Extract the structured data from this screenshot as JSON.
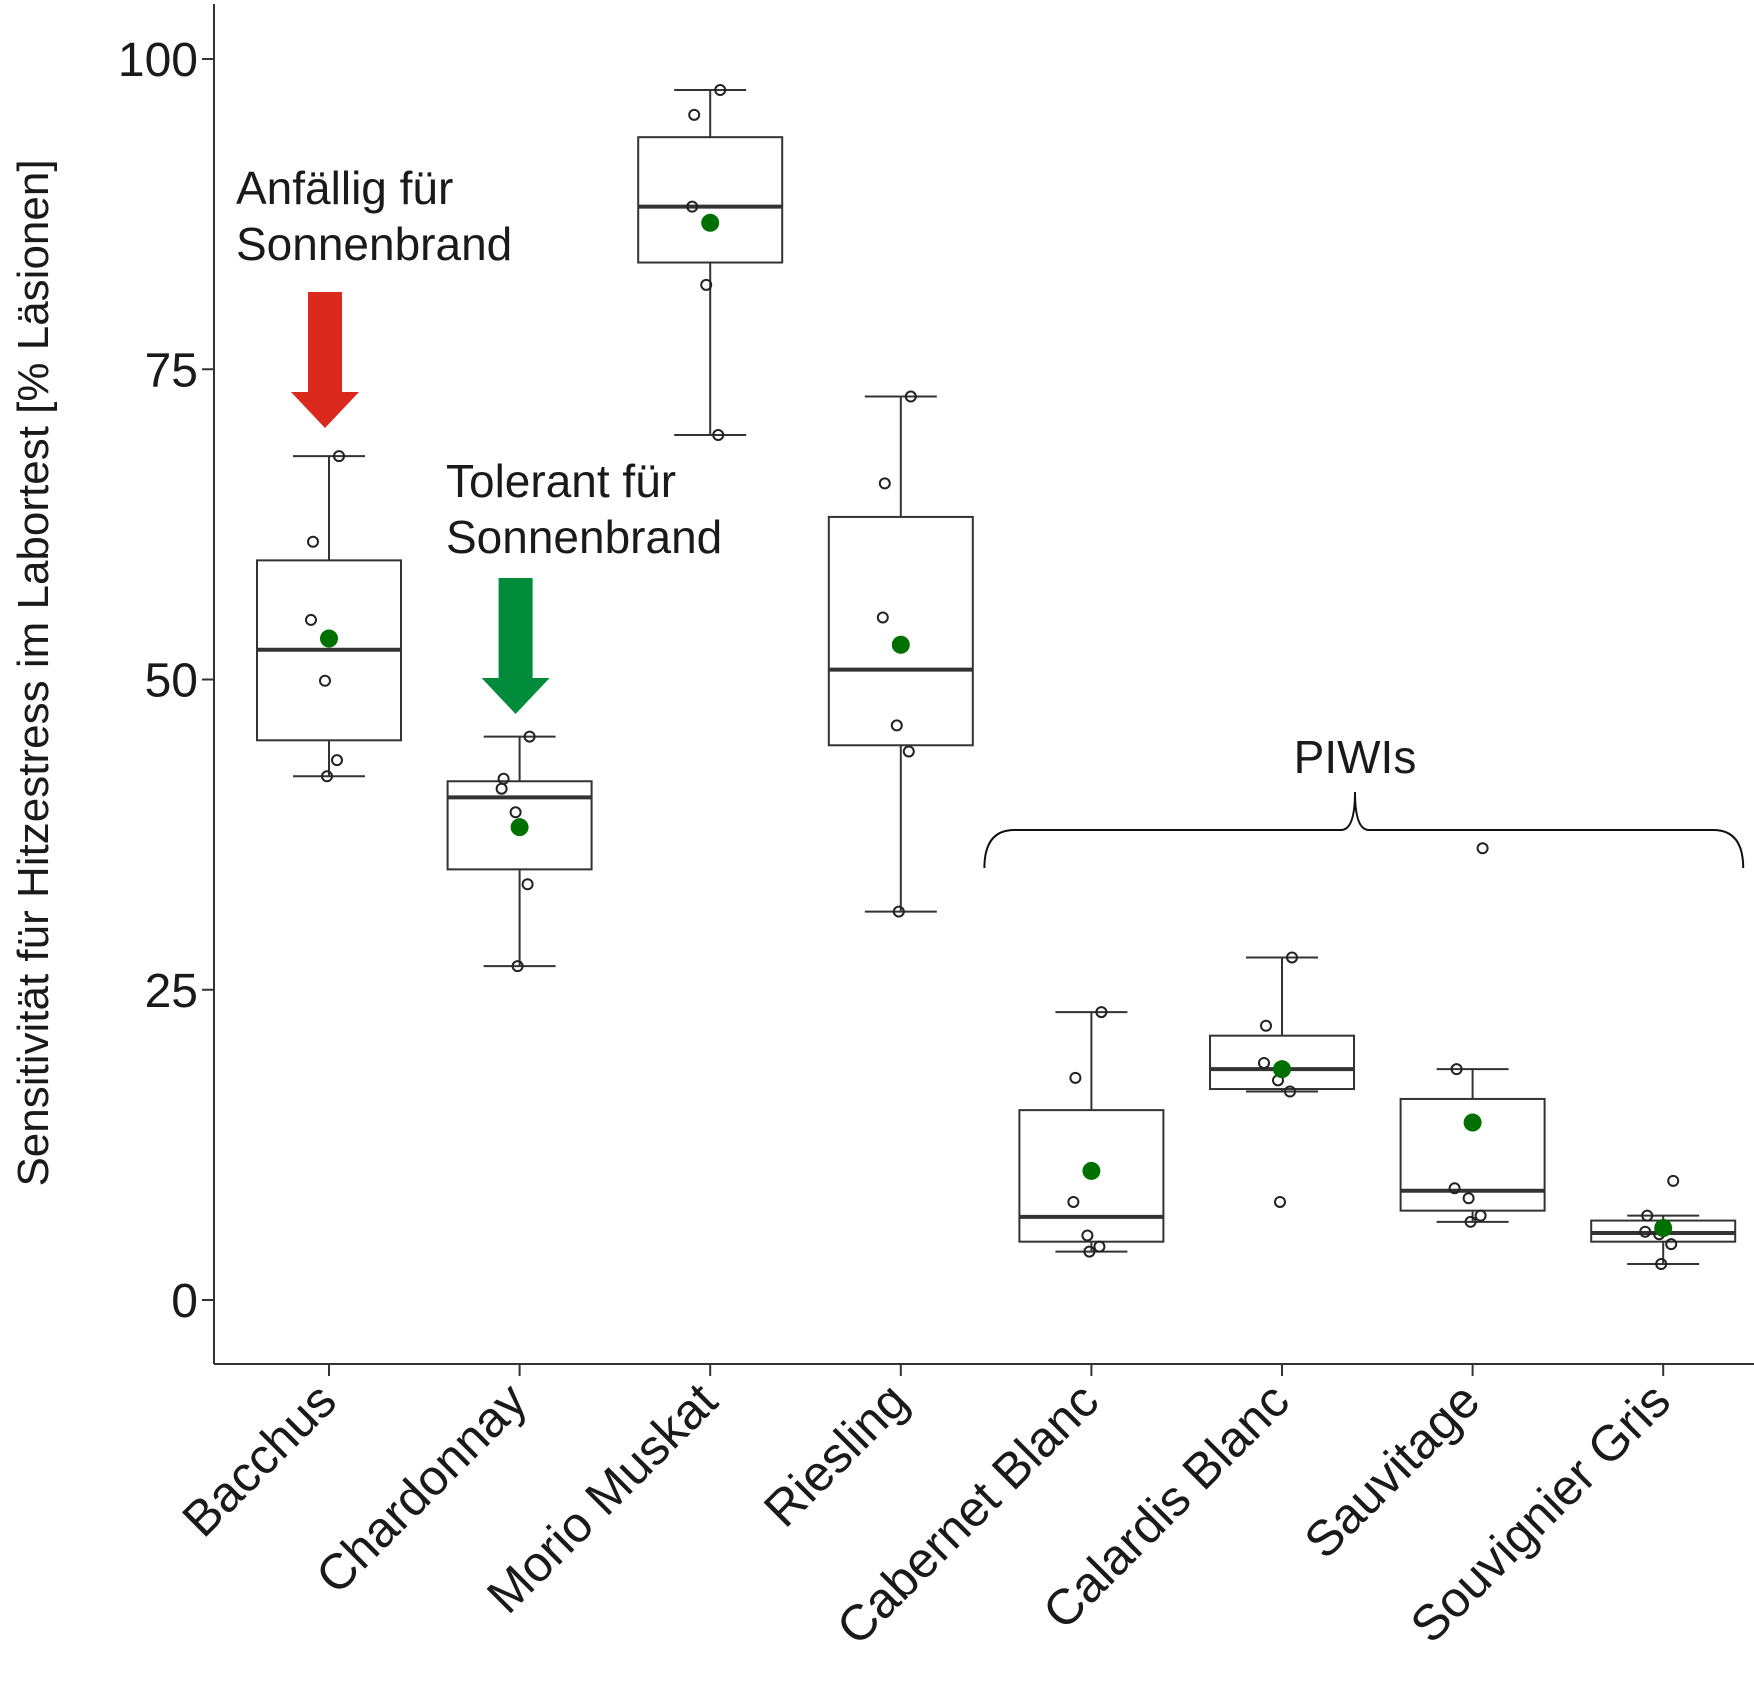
{
  "chart_data": {
    "type": "boxplot",
    "title": "",
    "xlabel": "",
    "ylabel": "Sensitivität für Hitzestress im Labortest [% Läsionen]",
    "ylim": [
      -5,
      105
    ],
    "yticks": [
      0,
      25,
      50,
      75,
      100
    ],
    "grid": false,
    "categories": [
      "Bacchus",
      "Chardonnay",
      "Morio Muskat",
      "Riesling",
      "Cabernet Blanc",
      "Calardis Blanc",
      "Sauvitage",
      "Souvignier Gris"
    ],
    "boxes": [
      {
        "whisker_low": 42.2,
        "q1": 45.1,
        "median": 52.4,
        "q3": 59.6,
        "whisker_high": 68.0,
        "mean": 53.3,
        "points": [
          68.0,
          61.1,
          54.8,
          49.9,
          43.5,
          42.2
        ]
      },
      {
        "whisker_low": 26.9,
        "q1": 34.7,
        "median": 40.5,
        "q3": 41.8,
        "whisker_high": 45.4,
        "mean": 38.1,
        "points": [
          45.4,
          42.0,
          41.2,
          39.3,
          33.5,
          26.9
        ]
      },
      {
        "whisker_low": 69.7,
        "q1": 83.6,
        "median": 88.1,
        "q3": 93.7,
        "whisker_high": 97.5,
        "mean": 86.8,
        "points": [
          97.5,
          95.5,
          88.1,
          81.8,
          69.7
        ]
      },
      {
        "whisker_low": 31.3,
        "q1": 44.7,
        "median": 50.8,
        "q3": 63.1,
        "whisker_high": 72.8,
        "mean": 52.8,
        "points": [
          72.8,
          65.8,
          55.0,
          46.3,
          44.2,
          31.3
        ]
      },
      {
        "whisker_low": 3.9,
        "q1": 4.7,
        "median": 6.7,
        "q3": 15.3,
        "whisker_high": 23.2,
        "mean": 10.4,
        "points": [
          23.2,
          17.9,
          7.9,
          5.2,
          4.3,
          3.9
        ]
      },
      {
        "whisker_low": 16.8,
        "q1": 17.0,
        "median": 18.6,
        "q3": 21.3,
        "whisker_high": 27.6,
        "mean": 18.6,
        "points": [
          27.6,
          22.1,
          19.1,
          17.7,
          16.8,
          7.9
        ]
      },
      {
        "whisker_low": 6.3,
        "q1": 7.2,
        "median": 8.8,
        "q3": 16.2,
        "whisker_high": 18.6,
        "mean": 14.3,
        "points": [
          36.4,
          18.6,
          9.0,
          8.2,
          6.8,
          6.3
        ]
      },
      {
        "whisker_low": 2.9,
        "q1": 4.7,
        "median": 5.4,
        "q3": 6.4,
        "whisker_high": 6.8,
        "mean": 5.8,
        "points": [
          9.6,
          6.8,
          5.5,
          5.3,
          4.5,
          2.9
        ]
      }
    ],
    "colors": {
      "box": "#333333",
      "mean": "#007000",
      "point": "#222222",
      "red_arrow": "#dc291e",
      "green_arrow": "#008c3a"
    },
    "annotations": [
      {
        "id": "anfaellig",
        "lines": [
          "Anfällig für",
          "Sonnenbrand"
        ],
        "arrow_color": "red_arrow",
        "target_category": "Bacchus"
      },
      {
        "id": "tolerant",
        "lines": [
          "Tolerant für",
          "Sonnenbrand"
        ],
        "arrow_color": "green_arrow",
        "target_category": "Chardonnay"
      },
      {
        "id": "piwis",
        "lines": [
          "PIWIs"
        ],
        "bracket_categories": [
          "Cabernet Blanc",
          "Souvignier Gris"
        ]
      }
    ]
  }
}
